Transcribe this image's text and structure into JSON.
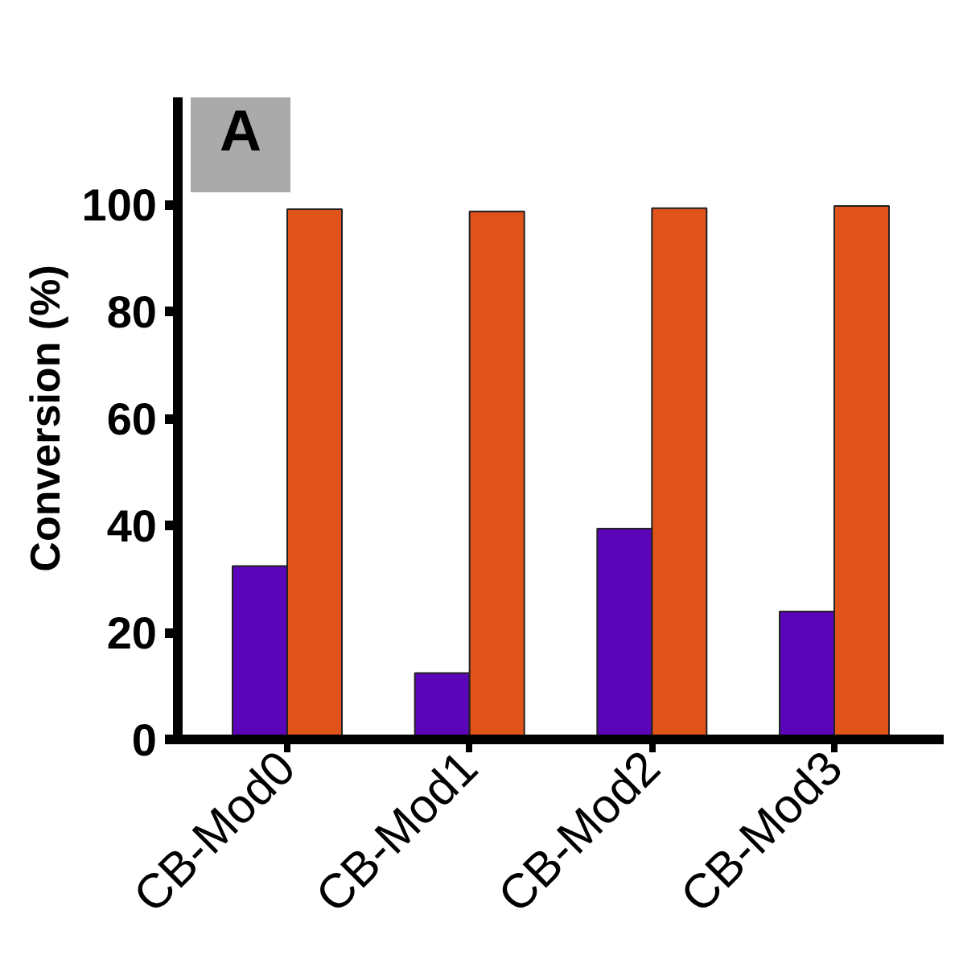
{
  "chart_data": {
    "type": "bar",
    "ylabel": "Conversion (%)",
    "annotations": [
      "A"
    ],
    "categories": [
      "CB-Mod0",
      "CB-Mod1",
      "CB-Mod2",
      "CB-Mod3"
    ],
    "series": [
      {
        "color": "#5a06b8",
        "values": [
          32.4,
          12.4,
          39.4,
          23.9
        ]
      },
      {
        "color": "#e0541c",
        "values": [
          99.1,
          98.7,
          99.3,
          99.7
        ]
      }
    ],
    "ylim": [
      0,
      120
    ],
    "yticks": [
      0,
      20,
      40,
      60,
      80,
      100
    ],
    "grid": false
  }
}
